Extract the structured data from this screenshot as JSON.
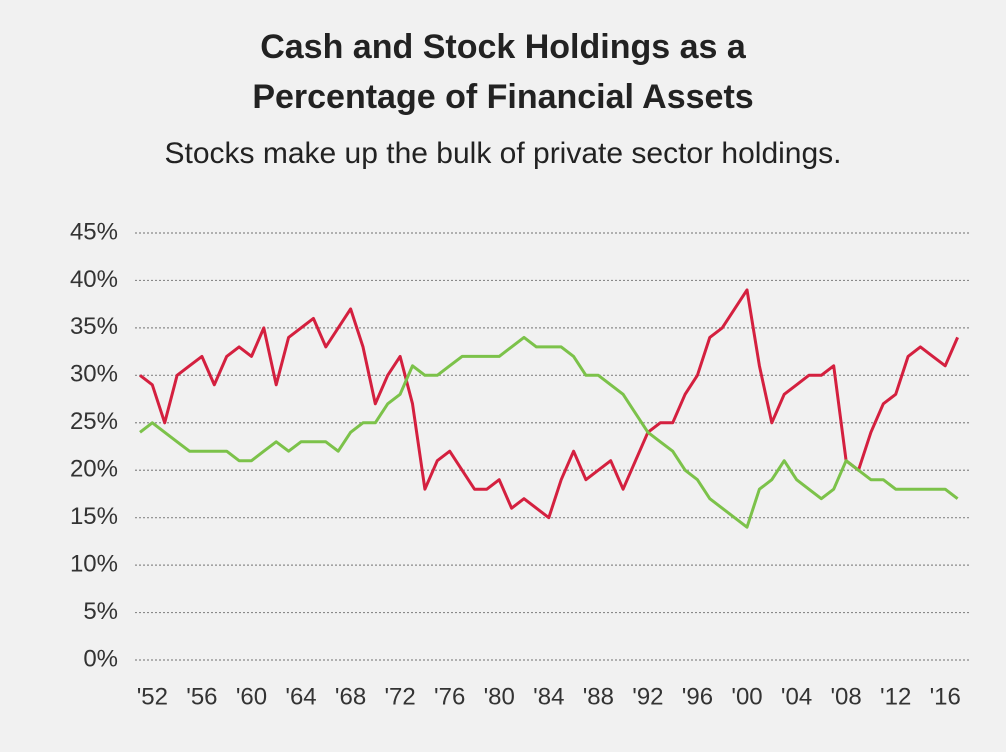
{
  "chart_data": {
    "type": "line",
    "title": "Cash and Stock Holdings as a Percentage of Financial Assets",
    "subtitle": "Stocks make up the bulk of private sector holdings.",
    "x": [
      1951,
      1952,
      1953,
      1954,
      1955,
      1956,
      1957,
      1958,
      1959,
      1960,
      1961,
      1962,
      1963,
      1964,
      1965,
      1966,
      1967,
      1968,
      1969,
      1970,
      1971,
      1972,
      1973,
      1974,
      1975,
      1976,
      1977,
      1978,
      1979,
      1980,
      1981,
      1982,
      1983,
      1984,
      1985,
      1986,
      1987,
      1988,
      1989,
      1990,
      1991,
      1992,
      1993,
      1994,
      1995,
      1996,
      1997,
      1998,
      1999,
      2000,
      2001,
      2002,
      2003,
      2004,
      2005,
      2006,
      2007,
      2008,
      2009,
      2010,
      2011,
      2012,
      2013,
      2014,
      2015,
      2016,
      2017
    ],
    "series": [
      {
        "color": "#d4203f",
        "values": [
          30,
          29,
          25,
          30,
          31,
          32,
          29,
          32,
          33,
          32,
          35,
          29,
          34,
          35,
          36,
          33,
          35,
          37,
          33,
          27,
          30,
          32,
          27,
          18,
          21,
          22,
          20,
          18,
          18,
          19,
          16,
          17,
          16,
          15,
          19,
          22,
          19,
          20,
          21,
          18,
          21,
          24,
          25,
          25,
          28,
          30,
          34,
          35,
          37,
          39,
          31,
          25,
          28,
          29,
          30,
          30,
          31,
          21,
          20,
          24,
          27,
          28,
          32,
          33,
          32,
          31,
          34
        ]
      },
      {
        "color": "#7cc24a",
        "values": [
          24,
          25,
          24,
          23,
          22,
          22,
          22,
          22,
          21,
          21,
          22,
          23,
          22,
          23,
          23,
          23,
          22,
          24,
          25,
          25,
          27,
          28,
          31,
          30,
          30,
          31,
          32,
          32,
          32,
          32,
          33,
          34,
          33,
          33,
          33,
          32,
          30,
          30,
          29,
          28,
          26,
          24,
          23,
          22,
          20,
          19,
          17,
          16,
          15,
          14,
          18,
          19,
          21,
          19,
          18,
          17,
          18,
          21,
          20,
          19,
          19,
          18,
          18,
          18,
          18,
          18,
          17
        ]
      }
    ],
    "xlim": [
      1950.6,
      2018
    ],
    "xticks": [
      {
        "value": 1952,
        "label": "'52"
      },
      {
        "value": 1956,
        "label": "'56"
      },
      {
        "value": 1960,
        "label": "'60"
      },
      {
        "value": 1964,
        "label": "'64"
      },
      {
        "value": 1968,
        "label": "'68"
      },
      {
        "value": 1972,
        "label": "'72"
      },
      {
        "value": 1976,
        "label": "'76"
      },
      {
        "value": 1980,
        "label": "'80"
      },
      {
        "value": 1984,
        "label": "'84"
      },
      {
        "value": 1988,
        "label": "'88"
      },
      {
        "value": 1992,
        "label": "'92"
      },
      {
        "value": 1996,
        "label": "'96"
      },
      {
        "value": 2000,
        "label": "'00"
      },
      {
        "value": 2004,
        "label": "'04"
      },
      {
        "value": 2008,
        "label": "'08"
      },
      {
        "value": 2012,
        "label": "'12"
      },
      {
        "value": 2016,
        "label": "'16"
      }
    ],
    "ylim": [
      0,
      45
    ],
    "yticks": [
      {
        "value": 0,
        "label": "0%"
      },
      {
        "value": 5,
        "label": "5%"
      },
      {
        "value": 10,
        "label": "10%"
      },
      {
        "value": 15,
        "label": "15%"
      },
      {
        "value": 20,
        "label": "20%"
      },
      {
        "value": 25,
        "label": "25%"
      },
      {
        "value": 30,
        "label": "30%"
      },
      {
        "value": 35,
        "label": "35%"
      },
      {
        "value": 40,
        "label": "40%"
      },
      {
        "value": 45,
        "label": "45%"
      }
    ],
    "grid": true
  }
}
